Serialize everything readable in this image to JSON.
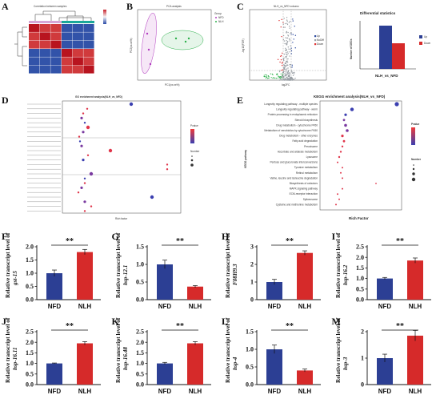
{
  "panel_letters": [
    "A",
    "B",
    "C",
    "D",
    "E",
    "F",
    "G",
    "H",
    "I",
    "J",
    "K",
    "L",
    "M"
  ],
  "heatmap": {
    "title": "Correlation between samples",
    "colors": {
      "high": "#c8202a",
      "low": "#2a4aa8",
      "mid": "#f4f4f4"
    }
  },
  "pca": {
    "title": "PCA analysis",
    "xlabel": "PC1(xx.xx%)",
    "ylabel": "PC2(xx.xx%)",
    "legend_title": "Group",
    "groups": [
      {
        "name": "NFD",
        "color": "#b13bbf"
      },
      {
        "name": "NLH",
        "color": "#2bb04a"
      }
    ]
  },
  "volcano": {
    "title": "NLH_vs_NFD volcano",
    "xlabel": "log2FC",
    "ylabel": "-log10(FDR)",
    "legend": [
      "Up",
      "NoDiff",
      "Down"
    ],
    "legend_colors": [
      "#2c4aa0",
      "#9aa0a6",
      "#e03030"
    ]
  },
  "diff_stats": {
    "title": "Differential statistics",
    "ylabel": "Number of DEGs",
    "xlabel": "NLH_vs_NFD",
    "legend": [
      "Up",
      "Down"
    ],
    "colors": [
      "#2c3f94",
      "#d62a2a"
    ]
  },
  "go": {
    "title": "GO enrichment analysis(NLH_vs_NFD)",
    "xlabel": "Rich factor",
    "legend_pvalue": "Pvalue",
    "legend_number": "Number"
  },
  "kegg": {
    "title": "KEGG enrichment analysis(NLH_vs_NFD)",
    "xlabel": "Rich Factor",
    "ylabel": "KEGG pathway",
    "legend_pvalue": "Pvalue",
    "legend_number": "Number",
    "terms": [
      "Longevity regulating pathway - multiple species",
      "Longevity regulating pathway - worm",
      "Protein processing in endoplasmic reticulum",
      "Steroid biosynthesis",
      "Drug metabolism - cytochrome P450",
      "Metabolism of xenobiotics by cytochrome P450",
      "Drug metabolism - other enzymes",
      "Fatty acid degradation",
      "Peroxisome",
      "Ascorbate and aldarate metabolism",
      "Lysosome",
      "Pentose and glucuronate interconversions",
      "Tyrosine metabolism",
      "Retinol metabolism",
      "Valine, leucine and isoleucine degradation",
      "Biosynthesis of cofactors",
      "MAPK signaling pathway",
      "ECM-receptor interaction",
      "Spliceosome",
      "Cysteine and methionine metabolism"
    ]
  },
  "chart_data": [
    {
      "id": "F",
      "type": "bar",
      "categories": [
        "NFD",
        "NLH"
      ],
      "values": [
        1.0,
        1.8
      ],
      "errors": [
        0.12,
        0.1
      ],
      "ylim": [
        0,
        2.0
      ],
      "yticks": [
        "0.0",
        "0.5",
        "1.0",
        "1.5",
        "2.0"
      ],
      "ylabel": "Relative transcript level of",
      "gene": "gst-15",
      "significance": "**",
      "colors": [
        "#2c3f94",
        "#d62a2a"
      ]
    },
    {
      "id": "G",
      "type": "bar",
      "categories": [
        "NFD",
        "NLH"
      ],
      "values": [
        1.0,
        0.37
      ],
      "errors": [
        0.12,
        0.03
      ],
      "ylim": [
        0,
        1.5
      ],
      "yticks": [
        "0.0",
        "0.5",
        "1.0",
        "1.5"
      ],
      "ylabel": "Relative transcript level of",
      "gene": "hsp-12.1",
      "significance": "**",
      "colors": [
        "#2c3f94",
        "#d62a2a"
      ]
    },
    {
      "id": "H",
      "type": "bar",
      "categories": [
        "NFD",
        "NLH"
      ],
      "values": [
        1.0,
        2.65
      ],
      "errors": [
        0.15,
        0.12
      ],
      "ylim": [
        0,
        3
      ],
      "yticks": [
        "0",
        "1",
        "2",
        "3"
      ],
      "ylabel": "Relative transcript level of",
      "gene": "F08H9.3",
      "significance": "**",
      "colors": [
        "#2c3f94",
        "#d62a2a"
      ]
    },
    {
      "id": "I",
      "type": "bar",
      "categories": [
        "NFD",
        "NLH"
      ],
      "values": [
        1.0,
        1.85
      ],
      "errors": [
        0.05,
        0.12
      ],
      "ylim": [
        0,
        2.5
      ],
      "yticks": [
        "0.0",
        "0.5",
        "1.0",
        "1.5",
        "2.0",
        "2.5"
      ],
      "ylabel": "Relative transcript level of",
      "gene": "hsp-16.2",
      "significance": "**",
      "colors": [
        "#2c3f94",
        "#d62a2a"
      ]
    },
    {
      "id": "J",
      "type": "bar",
      "categories": [
        "NFD",
        "NLH"
      ],
      "values": [
        1.0,
        1.95
      ],
      "errors": [
        0.02,
        0.08
      ],
      "ylim": [
        0,
        2.5
      ],
      "yticks": [
        "0.0",
        "0.5",
        "1.0",
        "1.5",
        "2.0",
        "2.5"
      ],
      "ylabel": "Relative transcript level of",
      "gene": "hsp-16.11",
      "significance": "**",
      "colors": [
        "#2c3f94",
        "#d62a2a"
      ]
    },
    {
      "id": "K",
      "type": "bar",
      "categories": [
        "NFD",
        "NLH"
      ],
      "values": [
        1.0,
        1.95
      ],
      "errors": [
        0.05,
        0.08
      ],
      "ylim": [
        0,
        2.5
      ],
      "yticks": [
        "0.0",
        "0.5",
        "1.0",
        "1.5",
        "2.0",
        "2.5"
      ],
      "ylabel": "Relative transcript level of",
      "gene": "hsp-16.48",
      "significance": "**",
      "colors": [
        "#2c3f94",
        "#d62a2a"
      ]
    },
    {
      "id": "L",
      "type": "bar",
      "categories": [
        "NFD",
        "NLH"
      ],
      "values": [
        1.0,
        0.4
      ],
      "errors": [
        0.12,
        0.04
      ],
      "ylim": [
        0,
        1.5
      ],
      "yticks": [
        "0.0",
        "0.5",
        "1.0",
        "1.5"
      ],
      "ylabel": "Relative transcript level of",
      "gene": "hsp-4",
      "significance": "**",
      "colors": [
        "#2c3f94",
        "#d62a2a"
      ]
    },
    {
      "id": "M",
      "type": "bar",
      "categories": [
        "NFD",
        "NLH"
      ],
      "values": [
        1.0,
        1.85
      ],
      "errors": [
        0.15,
        0.2
      ],
      "ylim": [
        0,
        2
      ],
      "yticks": [
        "0",
        "1",
        "2"
      ],
      "ylabel": "Relative transcript level of",
      "gene": "hsp-3",
      "significance": "**",
      "colors": [
        "#2c3f94",
        "#d62a2a"
      ]
    }
  ]
}
